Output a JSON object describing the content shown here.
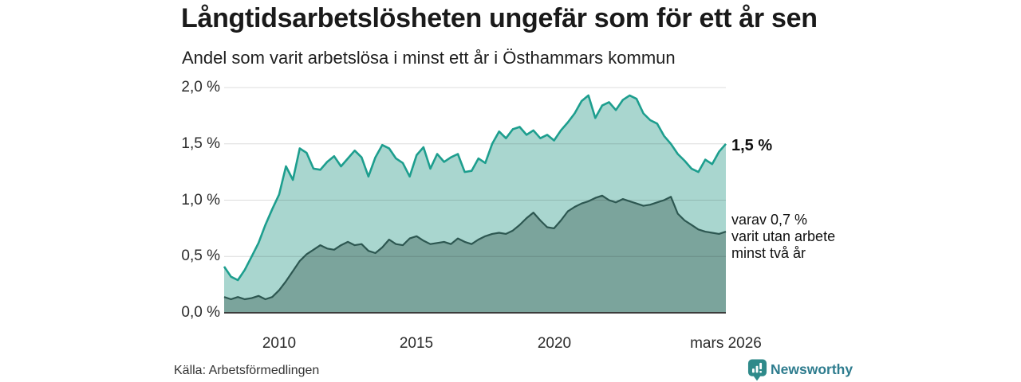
{
  "header": {
    "title": "Långtidsarbetslösheten ungefär som för ett år sen",
    "subtitle": "Andel som varit arbetslösa i minst ett år i Östhammars kommun"
  },
  "chart_data": {
    "type": "area",
    "title": "Långtidsarbetslösheten ungefär som för ett år sen",
    "subtitle": "Andel som varit arbetslösa i minst ett år i Östhammars kommun",
    "xlim": [
      2008,
      2026.25
    ],
    "ylim": [
      0,
      2
    ],
    "grid": "horizontal",
    "legend_position": "end-of-line-labels",
    "yticks": [
      {
        "value": 0.0,
        "label": "0,0 %"
      },
      {
        "value": 0.5,
        "label": "0,5 %"
      },
      {
        "value": 1.0,
        "label": "1,0 %"
      },
      {
        "value": 1.5,
        "label": "1,5 %"
      },
      {
        "value": 2.0,
        "label": "2,0 %"
      }
    ],
    "xticks": [
      {
        "value": 2010,
        "label": "2010"
      },
      {
        "value": 2015,
        "label": "2015"
      },
      {
        "value": 2020,
        "label": "2020"
      },
      {
        "value": 2026.25,
        "label": "mars 2026"
      }
    ],
    "series": [
      {
        "name": "Andel som varit arbetslösa i minst ett år",
        "line_color": "#1D9E8E",
        "fill_color": "#A9D6CF",
        "end_value_label": "1,5 %",
        "points": [
          [
            2008.0,
            0.41
          ],
          [
            2008.25,
            0.32
          ],
          [
            2008.5,
            0.29
          ],
          [
            2008.75,
            0.38
          ],
          [
            2009.0,
            0.5
          ],
          [
            2009.25,
            0.62
          ],
          [
            2009.5,
            0.78
          ],
          [
            2009.75,
            0.92
          ],
          [
            2010.0,
            1.05
          ],
          [
            2010.25,
            1.3
          ],
          [
            2010.5,
            1.18
          ],
          [
            2010.75,
            1.46
          ],
          [
            2011.0,
            1.42
          ],
          [
            2011.25,
            1.28
          ],
          [
            2011.5,
            1.27
          ],
          [
            2011.75,
            1.34
          ],
          [
            2012.0,
            1.39
          ],
          [
            2012.25,
            1.3
          ],
          [
            2012.5,
            1.37
          ],
          [
            2012.75,
            1.44
          ],
          [
            2013.0,
            1.38
          ],
          [
            2013.25,
            1.21
          ],
          [
            2013.5,
            1.38
          ],
          [
            2013.75,
            1.49
          ],
          [
            2014.0,
            1.46
          ],
          [
            2014.25,
            1.37
          ],
          [
            2014.5,
            1.33
          ],
          [
            2014.75,
            1.21
          ],
          [
            2015.0,
            1.4
          ],
          [
            2015.25,
            1.47
          ],
          [
            2015.5,
            1.28
          ],
          [
            2015.75,
            1.41
          ],
          [
            2016.0,
            1.34
          ],
          [
            2016.25,
            1.38
          ],
          [
            2016.5,
            1.41
          ],
          [
            2016.75,
            1.25
          ],
          [
            2017.0,
            1.26
          ],
          [
            2017.25,
            1.37
          ],
          [
            2017.5,
            1.33
          ],
          [
            2017.75,
            1.5
          ],
          [
            2018.0,
            1.61
          ],
          [
            2018.25,
            1.55
          ],
          [
            2018.5,
            1.63
          ],
          [
            2018.75,
            1.65
          ],
          [
            2019.0,
            1.58
          ],
          [
            2019.25,
            1.62
          ],
          [
            2019.5,
            1.55
          ],
          [
            2019.75,
            1.58
          ],
          [
            2020.0,
            1.53
          ],
          [
            2020.25,
            1.62
          ],
          [
            2020.5,
            1.69
          ],
          [
            2020.75,
            1.77
          ],
          [
            2021.0,
            1.88
          ],
          [
            2021.25,
            1.93
          ],
          [
            2021.5,
            1.73
          ],
          [
            2021.75,
            1.84
          ],
          [
            2022.0,
            1.87
          ],
          [
            2022.25,
            1.8
          ],
          [
            2022.5,
            1.89
          ],
          [
            2022.75,
            1.93
          ],
          [
            2023.0,
            1.9
          ],
          [
            2023.25,
            1.77
          ],
          [
            2023.5,
            1.71
          ],
          [
            2023.75,
            1.68
          ],
          [
            2024.0,
            1.57
          ],
          [
            2024.25,
            1.5
          ],
          [
            2024.5,
            1.41
          ],
          [
            2024.75,
            1.35
          ],
          [
            2025.0,
            1.28
          ],
          [
            2025.25,
            1.25
          ],
          [
            2025.5,
            1.36
          ],
          [
            2025.75,
            1.32
          ],
          [
            2026.0,
            1.43
          ],
          [
            2026.25,
            1.5
          ]
        ]
      },
      {
        "name": "varav arbetslösa minst två år",
        "line_color": "#2D5751",
        "fill_color": "#7BA49C",
        "end_value_label": "varav 0,7 %\nvarit utan arbete\nminst två år",
        "points": [
          [
            2008.0,
            0.14
          ],
          [
            2008.25,
            0.12
          ],
          [
            2008.5,
            0.14
          ],
          [
            2008.75,
            0.12
          ],
          [
            2009.0,
            0.13
          ],
          [
            2009.25,
            0.15
          ],
          [
            2009.5,
            0.12
          ],
          [
            2009.75,
            0.14
          ],
          [
            2010.0,
            0.2
          ],
          [
            2010.25,
            0.28
          ],
          [
            2010.5,
            0.37
          ],
          [
            2010.75,
            0.46
          ],
          [
            2011.0,
            0.52
          ],
          [
            2011.25,
            0.56
          ],
          [
            2011.5,
            0.6
          ],
          [
            2011.75,
            0.57
          ],
          [
            2012.0,
            0.56
          ],
          [
            2012.25,
            0.6
          ],
          [
            2012.5,
            0.63
          ],
          [
            2012.75,
            0.6
          ],
          [
            2013.0,
            0.61
          ],
          [
            2013.25,
            0.55
          ],
          [
            2013.5,
            0.53
          ],
          [
            2013.75,
            0.58
          ],
          [
            2014.0,
            0.65
          ],
          [
            2014.25,
            0.61
          ],
          [
            2014.5,
            0.6
          ],
          [
            2014.75,
            0.66
          ],
          [
            2015.0,
            0.68
          ],
          [
            2015.25,
            0.64
          ],
          [
            2015.5,
            0.61
          ],
          [
            2015.75,
            0.62
          ],
          [
            2016.0,
            0.63
          ],
          [
            2016.25,
            0.61
          ],
          [
            2016.5,
            0.66
          ],
          [
            2016.75,
            0.63
          ],
          [
            2017.0,
            0.61
          ],
          [
            2017.25,
            0.65
          ],
          [
            2017.5,
            0.68
          ],
          [
            2017.75,
            0.7
          ],
          [
            2018.0,
            0.71
          ],
          [
            2018.25,
            0.7
          ],
          [
            2018.5,
            0.73
          ],
          [
            2018.75,
            0.78
          ],
          [
            2019.0,
            0.84
          ],
          [
            2019.25,
            0.89
          ],
          [
            2019.5,
            0.82
          ],
          [
            2019.75,
            0.76
          ],
          [
            2020.0,
            0.75
          ],
          [
            2020.25,
            0.82
          ],
          [
            2020.5,
            0.9
          ],
          [
            2020.75,
            0.94
          ],
          [
            2021.0,
            0.97
          ],
          [
            2021.25,
            0.99
          ],
          [
            2021.5,
            1.02
          ],
          [
            2021.75,
            1.04
          ],
          [
            2022.0,
            1.0
          ],
          [
            2022.25,
            0.98
          ],
          [
            2022.5,
            1.01
          ],
          [
            2022.75,
            0.99
          ],
          [
            2023.0,
            0.97
          ],
          [
            2023.25,
            0.95
          ],
          [
            2023.5,
            0.96
          ],
          [
            2023.75,
            0.98
          ],
          [
            2024.0,
            1.0
          ],
          [
            2024.25,
            1.03
          ],
          [
            2024.5,
            0.88
          ],
          [
            2024.75,
            0.82
          ],
          [
            2025.0,
            0.78
          ],
          [
            2025.25,
            0.74
          ],
          [
            2025.5,
            0.72
          ],
          [
            2025.75,
            0.71
          ],
          [
            2026.0,
            0.7
          ],
          [
            2026.25,
            0.72
          ]
        ]
      }
    ],
    "colors": {
      "gridline": "#D9D9D9",
      "axis_line": "#3C3C3C",
      "text": "#111111"
    }
  },
  "footer": {
    "source": "Källa: Arbetsförmedlingen",
    "brand": "Newsworthy",
    "brand_color": "#2E7C8E",
    "brand_icon_color": "#2F8A8A"
  }
}
